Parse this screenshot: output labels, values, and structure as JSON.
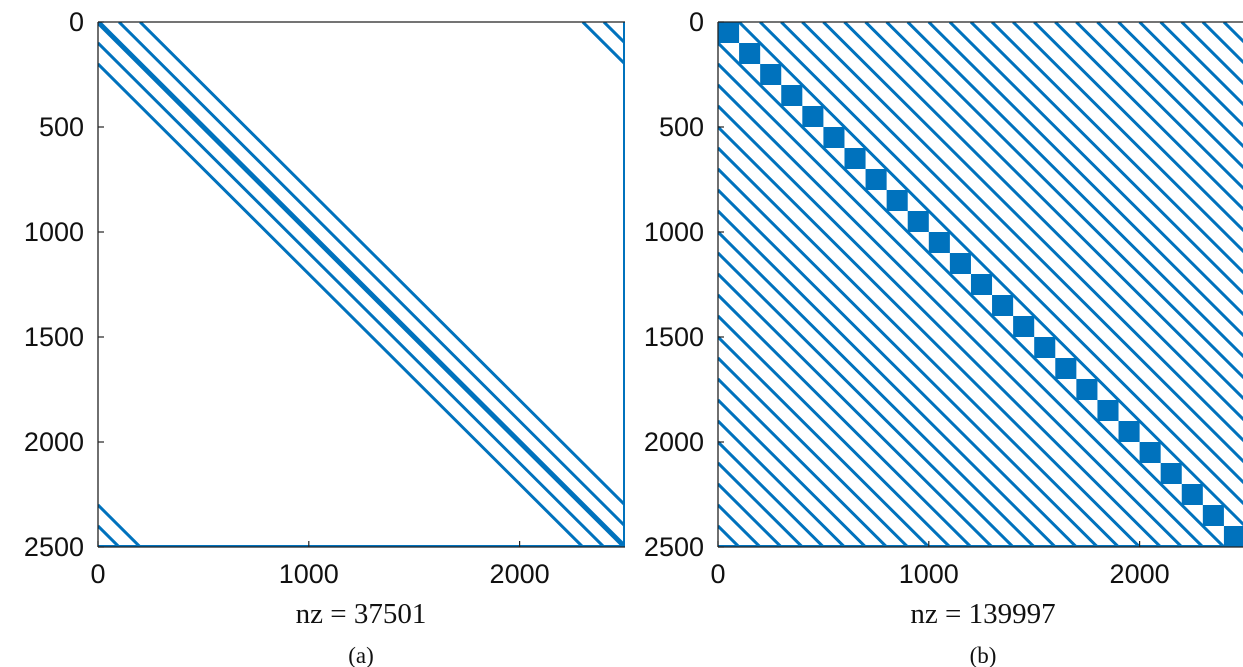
{
  "chart_data": [
    {
      "type": "spy",
      "panel": "(a)",
      "xlabel": "nz = 37501",
      "xlim": [
        0,
        2500
      ],
      "ylim": [
        0,
        2500
      ],
      "y_reversed": true,
      "xticks": [
        0,
        1000,
        2000
      ],
      "yticks": [
        0,
        500,
        1000,
        1500,
        2000,
        2500
      ],
      "color": "#0072BD",
      "diagonal_offsets": [
        -200,
        -100,
        0,
        100,
        200,
        2300,
        2400,
        -2300,
        -2400
      ],
      "main_diagonal_bold": true,
      "full_rows": [
        2500
      ],
      "full_cols": [
        2500
      ]
    },
    {
      "type": "spy",
      "panel": "(b)",
      "xlabel": "nz = 139997",
      "xlim": [
        0,
        2500
      ],
      "ylim": [
        0,
        2500
      ],
      "y_reversed": true,
      "xticks": [
        0,
        1000,
        2000
      ],
      "yticks": [
        0,
        500,
        1000,
        1500,
        2000,
        2500
      ],
      "color": "#0072BD",
      "offset_step": 100,
      "block_size": 100,
      "block_count": 25,
      "full_rows": [
        2500
      ]
    }
  ]
}
